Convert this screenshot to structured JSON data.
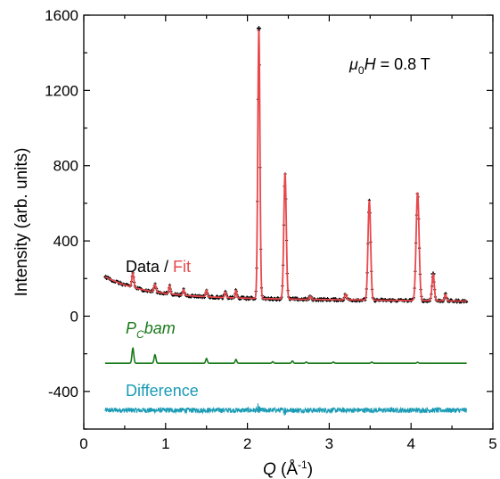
{
  "chart_data": {
    "type": "line",
    "xlabel": {
      "symbol": "Q",
      "unit_base": " (Å",
      "unit_exp": "-1",
      "unit_close": ")"
    },
    "ylabel": "Intensity (arb. units)",
    "xlim": [
      0,
      5
    ],
    "ylim": [
      -600,
      1600
    ],
    "xticks": [
      0,
      1,
      2,
      3,
      4,
      5
    ],
    "yticks": [
      -400,
      0,
      400,
      800,
      1200,
      1600
    ],
    "xtick_labels": [
      "0",
      "1",
      "2",
      "3",
      "4",
      "5"
    ],
    "ytick_labels": [
      "-400",
      "0",
      "400",
      "800",
      "1200",
      "1600"
    ],
    "grid": false,
    "field_label": {
      "mu": "μ",
      "sub": "0",
      "H": "H",
      "rest": " = 0.8 T"
    },
    "legend": {
      "data_label": "Data",
      "separator": " / ",
      "fit_label": "Fit",
      "phase_label": {
        "P": "P",
        "sub": "C",
        "rest": "bam"
      },
      "difference_label": "Difference"
    },
    "colors": {
      "data": "#000000",
      "fit": "#e8474b",
      "phase": "#1a7a1a",
      "difference": "#1a9bb5"
    },
    "background": {
      "start_value": 190,
      "end_value": 80,
      "tail_start": 0.28
    },
    "peaks": [
      {
        "q": 0.6,
        "height": 75,
        "width": 0.012
      },
      {
        "q": 0.87,
        "height": 40,
        "width": 0.012
      },
      {
        "q": 1.05,
        "height": 45,
        "width": 0.01
      },
      {
        "q": 1.22,
        "height": 30,
        "width": 0.01
      },
      {
        "q": 1.5,
        "height": 35,
        "width": 0.01
      },
      {
        "q": 1.73,
        "height": 30,
        "width": 0.01
      },
      {
        "q": 1.86,
        "height": 40,
        "width": 0.01
      },
      {
        "q": 2.14,
        "height": 1430,
        "width": 0.013
      },
      {
        "q": 2.46,
        "height": 670,
        "width": 0.015
      },
      {
        "q": 2.77,
        "height": 18,
        "width": 0.01
      },
      {
        "q": 3.2,
        "height": 30,
        "width": 0.012
      },
      {
        "q": 3.49,
        "height": 530,
        "width": 0.016
      },
      {
        "q": 4.08,
        "height": 575,
        "width": 0.018
      },
      {
        "q": 4.27,
        "height": 140,
        "width": 0.014
      },
      {
        "q": 4.42,
        "height": 35,
        "width": 0.012
      }
    ],
    "phase_offset": -250,
    "phase_peaks": [
      {
        "q": 0.6,
        "height": 80,
        "width": 0.011
      },
      {
        "q": 0.87,
        "height": 45,
        "width": 0.011
      },
      {
        "q": 1.5,
        "height": 25,
        "width": 0.01
      },
      {
        "q": 1.86,
        "height": 20,
        "width": 0.01
      },
      {
        "q": 2.31,
        "height": 8,
        "width": 0.01
      },
      {
        "q": 2.55,
        "height": 12,
        "width": 0.01
      },
      {
        "q": 2.72,
        "height": 6,
        "width": 0.01
      },
      {
        "q": 3.05,
        "height": 6,
        "width": 0.01
      },
      {
        "q": 3.52,
        "height": 6,
        "width": 0.01
      },
      {
        "q": 4.08,
        "height": 5,
        "width": 0.01
      }
    ],
    "difference_offset": -500,
    "difference_noise": 14,
    "difference_spikes": [
      {
        "q": 2.14,
        "amp": 25
      },
      {
        "q": 2.46,
        "amp": 30
      }
    ],
    "x_range_data": [
      0.26,
      4.68
    ],
    "marker_points": [
      {
        "x": 2.14,
        "y": 1530
      },
      {
        "x": 4.27,
        "y": 225
      }
    ]
  }
}
